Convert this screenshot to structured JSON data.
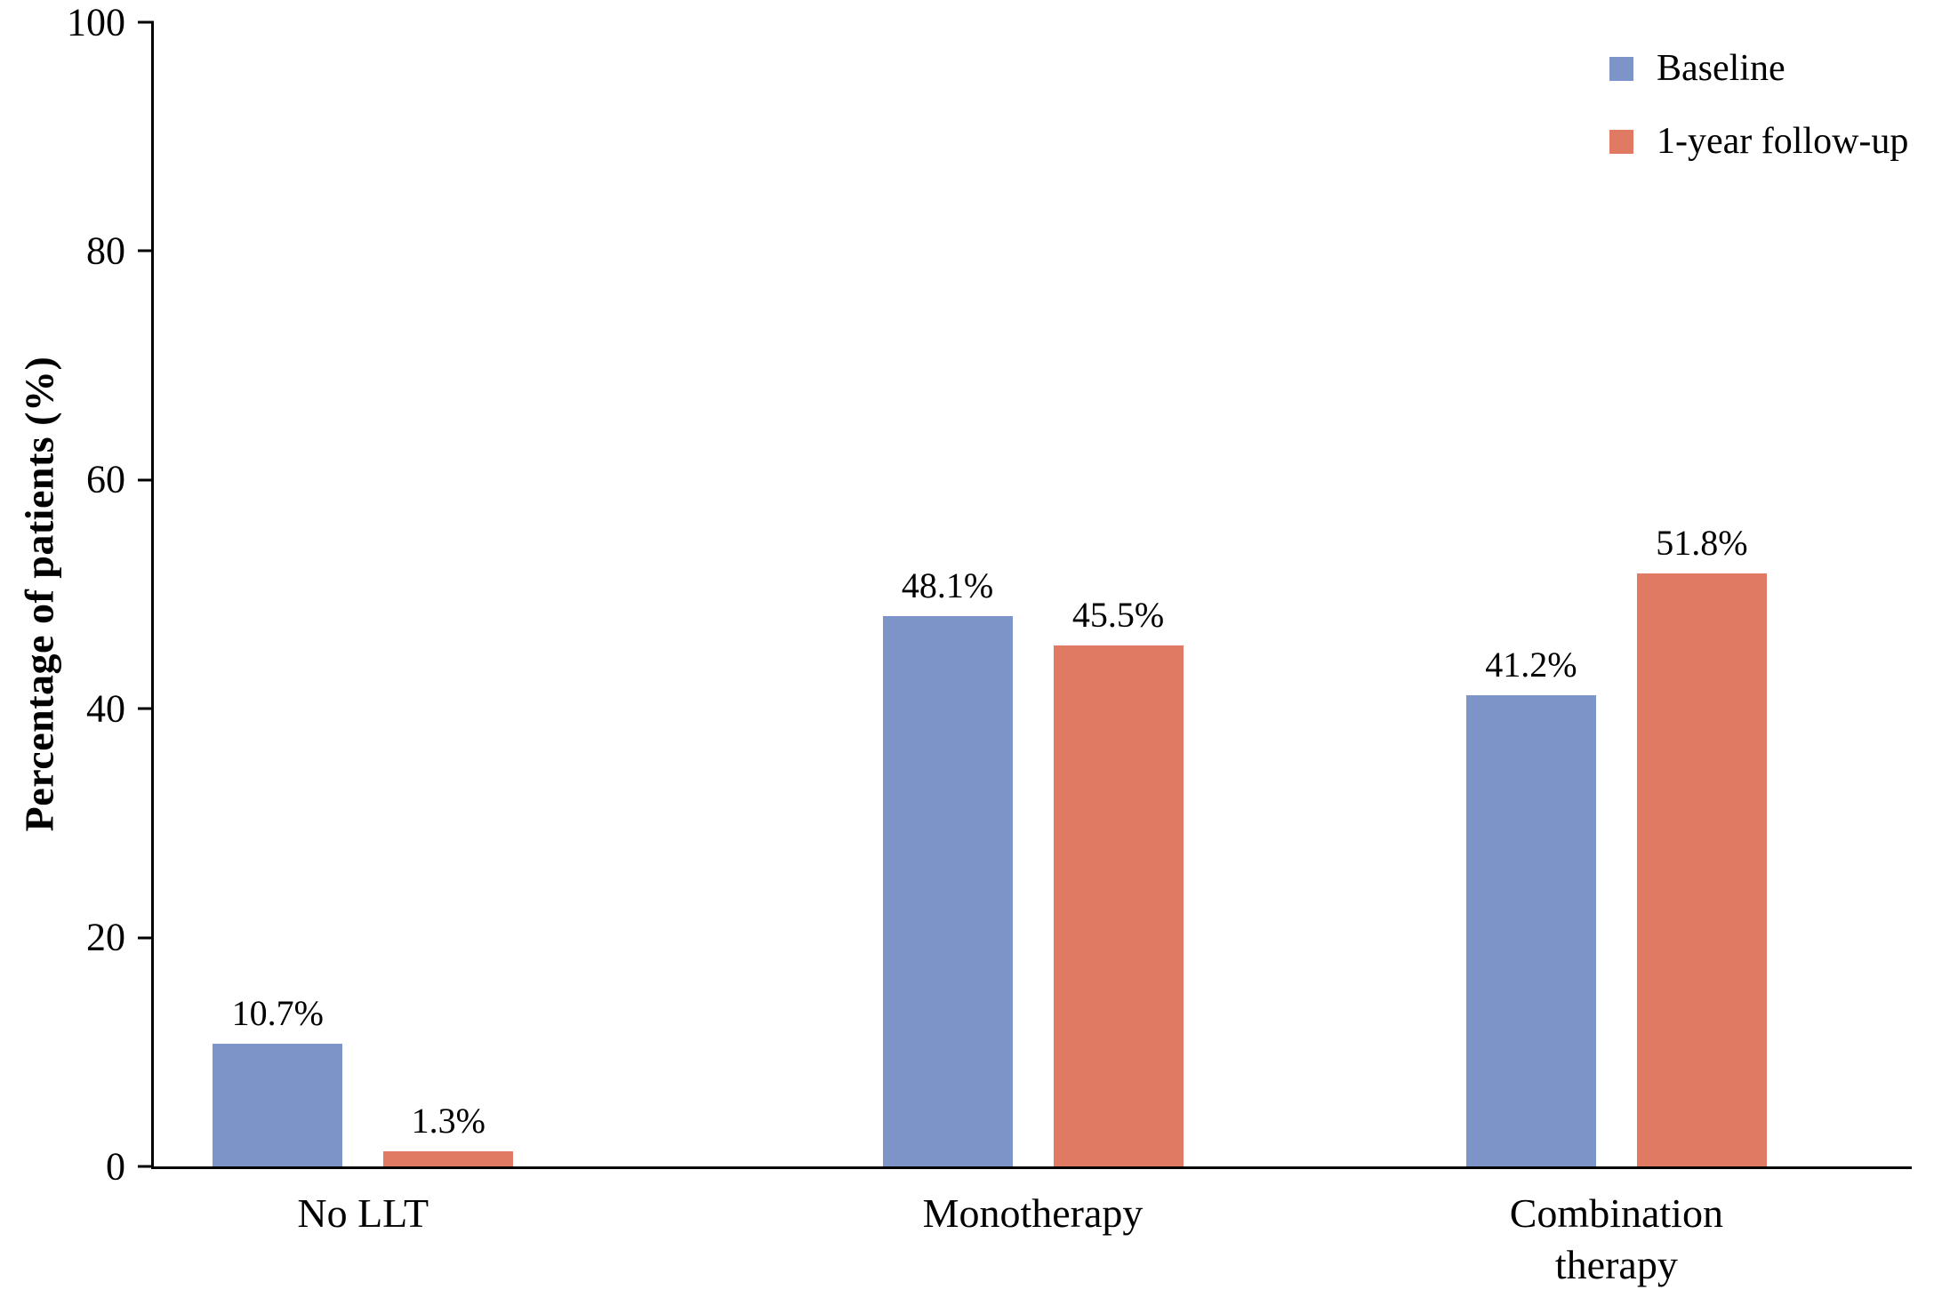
{
  "chart_data": {
    "type": "bar",
    "title": "",
    "xlabel": "",
    "ylabel": "Percentage of patients (%)",
    "ylim": [
      0,
      100
    ],
    "yticks": [
      0,
      20,
      40,
      60,
      80,
      100
    ],
    "grid": false,
    "legend_position": "top-right",
    "categories": [
      "No LLT",
      "Monotherapy",
      "Combination\ntherapy"
    ],
    "series": [
      {
        "name": "Baseline",
        "color": "#7C94C7",
        "values": [
          10.7,
          48.1,
          41.2
        ],
        "value_labels": [
          "10.7%",
          "48.1%",
          "41.2%"
        ],
        "annotation": ""
      },
      {
        "name": "1-year follow-up",
        "color": "#E17A62",
        "values": [
          1.3,
          45.5,
          51.8
        ],
        "value_labels": [
          "1.3%",
          "45.5%",
          "51.8%"
        ],
        "annotation": "*"
      }
    ]
  }
}
